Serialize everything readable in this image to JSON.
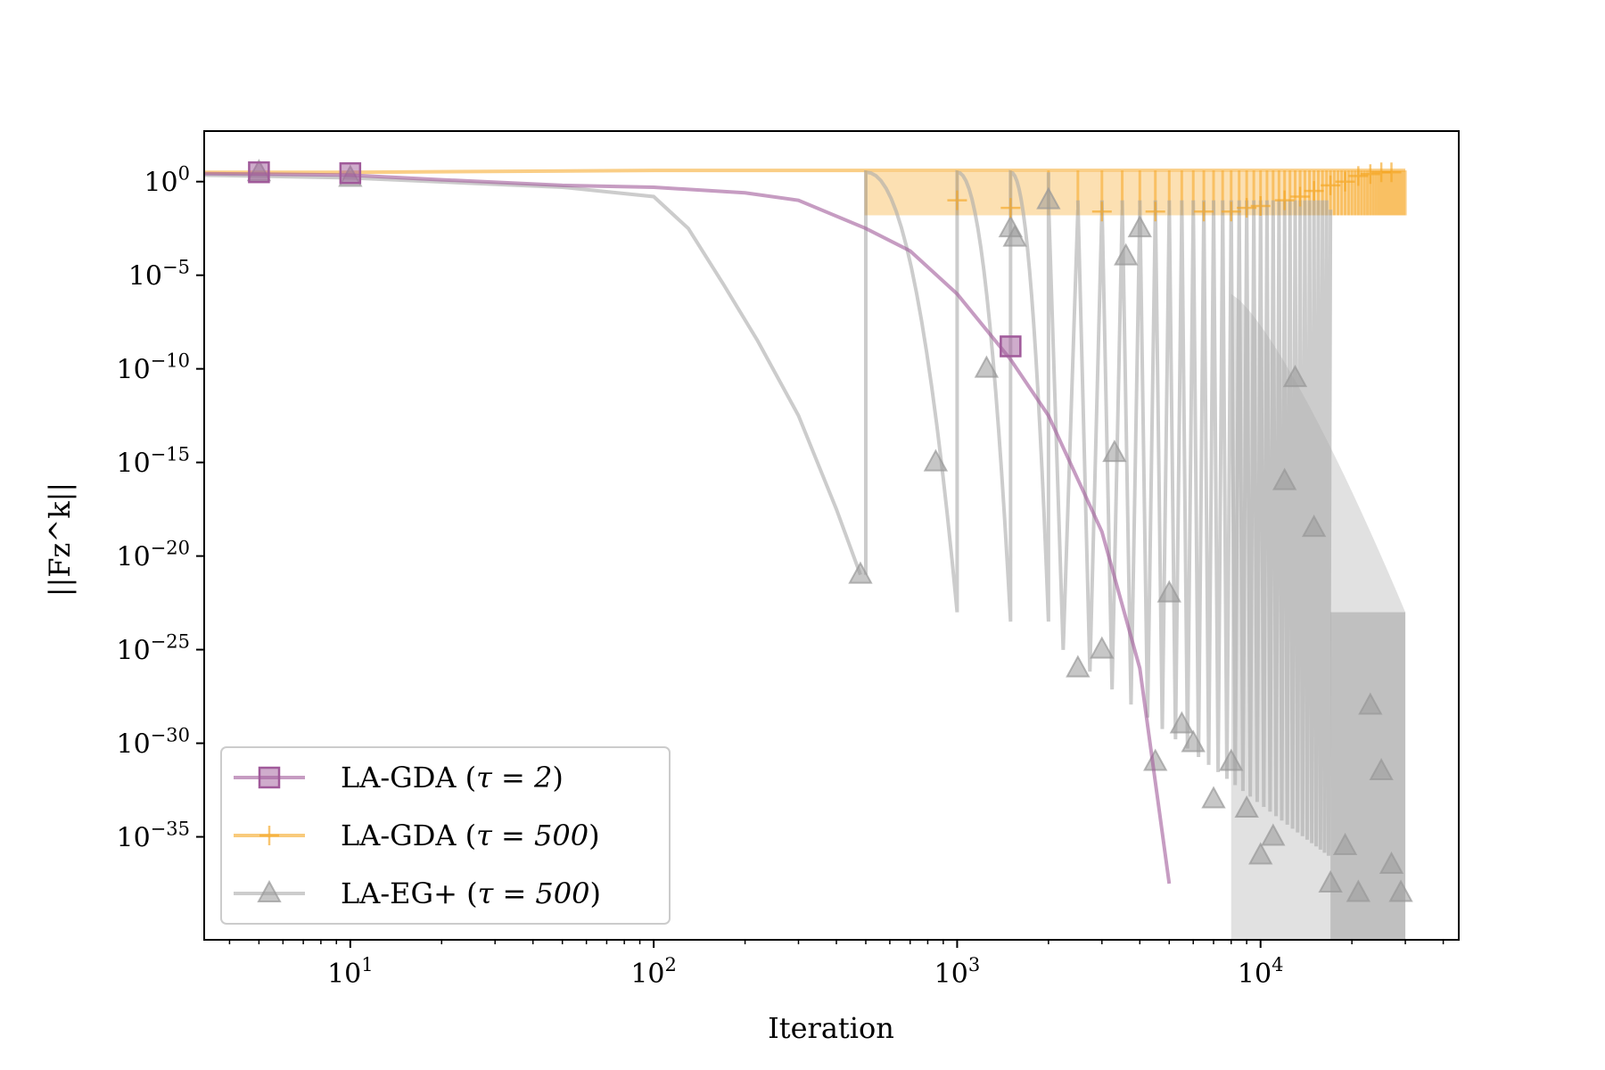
{
  "chart_data": {
    "type": "line",
    "title": "",
    "xlabel": "Iteration",
    "ylabel": "||Fz^k||",
    "xscale": "log",
    "yscale": "log",
    "xlim": [
      3.3,
      45000
    ],
    "ylim_exponent": [
      -40.5,
      2.7
    ],
    "grid": false,
    "legend_position": "lower-left",
    "x_ticks": [
      {
        "base": "10",
        "exp": "1",
        "value": 10
      },
      {
        "base": "10",
        "exp": "2",
        "value": 100
      },
      {
        "base": "10",
        "exp": "3",
        "value": 1000
      },
      {
        "base": "10",
        "exp": "4",
        "value": 10000
      }
    ],
    "y_ticks": [
      {
        "base": "10",
        "exp": "0",
        "value": 0
      },
      {
        "base": "10",
        "exp": "−5",
        "value": -5
      },
      {
        "base": "10",
        "exp": "−10",
        "value": -10
      },
      {
        "base": "10",
        "exp": "−15",
        "value": -15
      },
      {
        "base": "10",
        "exp": "−20",
        "value": -20
      },
      {
        "base": "10",
        "exp": "−25",
        "value": -25
      },
      {
        "base": "10",
        "exp": "−30",
        "value": -30
      },
      {
        "base": "10",
        "exp": "−35",
        "value": -35
      }
    ],
    "series": [
      {
        "name": "LA-GDA (τ = 2)",
        "label_main": "LA-GDA (",
        "label_param": "τ = 2",
        "label_close": ")",
        "color": "#a05a9a",
        "marker": "square",
        "x": [
          1,
          5,
          10,
          20,
          50,
          100,
          200,
          300,
          500,
          700,
          1000,
          1500,
          2000,
          3000,
          4000,
          5000
        ],
        "y_exponent": [
          0.5,
          0.4,
          0.35,
          0.1,
          -0.2,
          -0.3,
          -0.6,
          -1.0,
          -2.5,
          -3.7,
          -6.0,
          -9.5,
          -12.5,
          -18.7,
          -26.0,
          -37.5
        ],
        "markers_x": [
          5,
          10,
          1500
        ],
        "markers_y_exponent": [
          0.5,
          0.45,
          -8.8
        ]
      },
      {
        "name": "LA-GDA (τ = 500)",
        "label_main": "LA-GDA (",
        "label_param": "τ = 500",
        "label_close": ")",
        "color": "#f5a623",
        "marker": "plus",
        "band_x": [
          500,
          30000
        ],
        "band_y_exponent": [
          -1.8,
          0.5
        ],
        "x": [
          1,
          10,
          100,
          500,
          1000,
          3000,
          10000,
          20000,
          30000
        ],
        "y_exponent": [
          0.5,
          0.5,
          0.6,
          0.6,
          0.6,
          0.6,
          0.6,
          0.6,
          0.6
        ],
        "markers_x": [
          1000,
          1500,
          3000,
          4500,
          6500,
          8000,
          9000,
          10000,
          12000,
          13500,
          15000,
          17000,
          19000,
          21000,
          23000,
          25000,
          27000
        ],
        "markers_y_exponent": [
          -1.0,
          -1.4,
          -1.6,
          -1.6,
          -1.6,
          -1.6,
          -1.4,
          -1.3,
          -1.0,
          -0.8,
          -0.5,
          -0.2,
          0.0,
          0.3,
          0.4,
          0.5,
          0.5
        ]
      },
      {
        "name": "LA-EG+ (τ = 500)",
        "label_main": "LA-EG+ (",
        "label_param": "τ = 500",
        "label_close": ")",
        "color": "#aaaaaa",
        "marker": "triangle",
        "x": [
          1,
          10,
          50,
          100,
          130,
          170,
          220,
          300,
          400,
          480
        ],
        "y_exponent": [
          0.5,
          0.2,
          -0.3,
          -0.8,
          -2.5,
          -5.5,
          -8.5,
          -12.5,
          -17.5,
          -21.0
        ],
        "cycles": [
          {
            "start": 500,
            "end": 1000,
            "depth": -23.0
          },
          {
            "start": 1000,
            "end": 1500,
            "depth": -23.5
          },
          {
            "start": 1500,
            "end": 2000,
            "depth": -23.5
          }
        ],
        "band_x": [
          17000,
          30000
        ],
        "band_y_exponent": [
          -40.5,
          -23.0
        ],
        "markers_x": [
          5,
          10,
          480,
          850,
          1250,
          1500,
          1550,
          2000,
          2500,
          3000,
          3300,
          3600,
          4000,
          4500,
          5000,
          5500,
          6000,
          7000,
          8000,
          9000,
          10000,
          11000,
          12000,
          13000,
          15000,
          17000,
          19000,
          21000,
          23000,
          25000,
          27000,
          29000
        ],
        "markers_y_exponent": [
          0.5,
          0.2,
          -21.0,
          -15.0,
          -10.0,
          -2.5,
          -3.0,
          -1.0,
          -26.0,
          -25.0,
          -14.5,
          -4.0,
          -2.5,
          -31.0,
          -22.0,
          -29.0,
          -30.0,
          -33.0,
          -31.0,
          -33.5,
          -36.0,
          -35.0,
          -16.0,
          -10.5,
          -18.5,
          -37.5,
          -35.5,
          -38.0,
          -28.0,
          -31.5,
          -36.5,
          -38.0
        ]
      }
    ]
  }
}
